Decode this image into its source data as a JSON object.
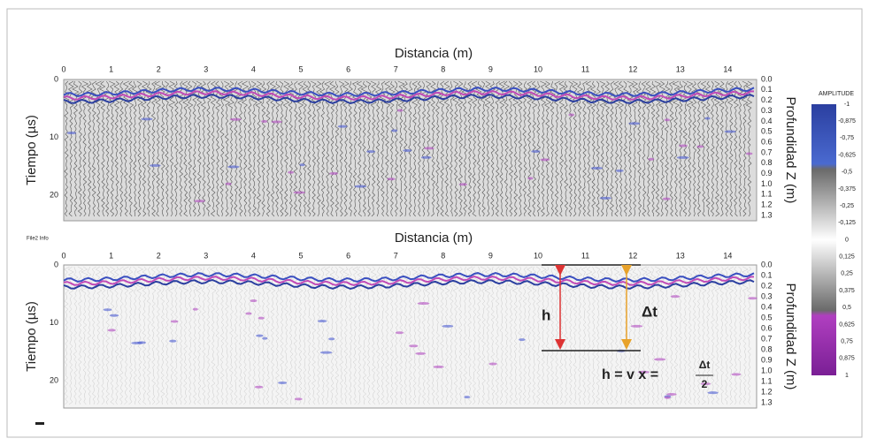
{
  "top_panel": {
    "x_title": "Distancia (m)",
    "x_ticks": [
      "0",
      "1",
      "2",
      "3",
      "4",
      "5",
      "6",
      "7",
      "8",
      "9",
      "10",
      "11",
      "12",
      "13",
      "14"
    ],
    "y_title": "Tiempo (µs)",
    "y_ticks": [
      "0",
      "10",
      "20"
    ],
    "right_title": "Profundidad Z (m)",
    "right_ticks": [
      "0.0",
      "0.1",
      "0.2",
      "0.3",
      "0.4",
      "0.5",
      "0.6",
      "0.7",
      "0.8",
      "0.9",
      "1.0",
      "1.1",
      "1.2",
      "1.3"
    ]
  },
  "bottom_panel": {
    "info": "File2 Info",
    "x_title": "Distancia (m)",
    "x_ticks": [
      "0",
      "1",
      "2",
      "3",
      "4",
      "5",
      "6",
      "7",
      "8",
      "9",
      "10",
      "11",
      "12",
      "13",
      "14"
    ],
    "y_title": "Tiempo (µs)",
    "y_ticks": [
      "0",
      "10",
      "20"
    ],
    "right_title": "Profundidad Z (m)",
    "right_ticks": [
      "0.0",
      "0.1",
      "0.2",
      "0.3",
      "0.4",
      "0.5",
      "0.6",
      "0.7",
      "0.8",
      "0.9",
      "1.0",
      "1.1",
      "1.2",
      "1.3"
    ],
    "annotations": {
      "h": "h",
      "dt": "Δt",
      "formula": "h = v x =",
      "formula_numerator": "Δt",
      "formula_denominator": "2"
    }
  },
  "colorbar": {
    "title": "AMPLITUDE",
    "labels": [
      "-1",
      "-0,875",
      "-0,75",
      "-0,625",
      "-0,5",
      "-0,375",
      "-0,25",
      "-0,125",
      "0",
      "0,125",
      "0,25",
      "0,375",
      "0,5",
      "0,625",
      "0,75",
      "0,875",
      "1"
    ]
  }
}
